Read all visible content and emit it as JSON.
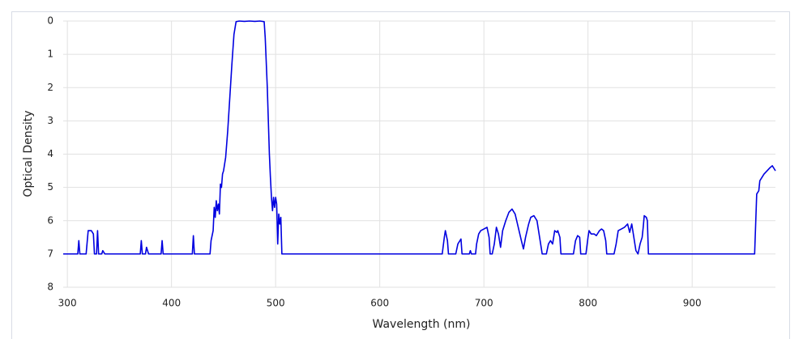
{
  "chart_data": {
    "type": "line",
    "x_label": "Wavelength (nm)",
    "y_label": "Optical Density",
    "xlim": [
      296,
      980
    ],
    "xticks": [
      300,
      400,
      500,
      600,
      700,
      800,
      900
    ],
    "ylim": [
      8,
      0
    ],
    "yticks": [
      0,
      1,
      2,
      3,
      4,
      5,
      6,
      7,
      8
    ],
    "grid": true,
    "series": [
      {
        "color": "#0000e0",
        "x": [
          296,
          310,
          311,
          312,
          318,
          320,
          323,
          325,
          326,
          328,
          329,
          330,
          333,
          334,
          336,
          370,
          371,
          372,
          375,
          376,
          378,
          390,
          391,
          392,
          420,
          421,
          422,
          437,
          438,
          440,
          441,
          442,
          443,
          444,
          445,
          446,
          447,
          448,
          449,
          450,
          452,
          454,
          456,
          458,
          460,
          462,
          465,
          470,
          475,
          480,
          485,
          489,
          490,
          492,
          494,
          495,
          496,
          497,
          498,
          499,
          500,
          501,
          502,
          503,
          504,
          505,
          506,
          660,
          662,
          663,
          665,
          666,
          673,
          675,
          678,
          679,
          686,
          687,
          688,
          692,
          693,
          695,
          697,
          700,
          703,
          705,
          706,
          708,
          710,
          712,
          714,
          716,
          718,
          721,
          724,
          727,
          730,
          733,
          736,
          738,
          740,
          743,
          745,
          748,
          751,
          753,
          755,
          756,
          760,
          762,
          764,
          766,
          768,
          770,
          771,
          773,
          774,
          786,
          788,
          790,
          792,
          793,
          798,
          800,
          801,
          803,
          806,
          808,
          811,
          813,
          815,
          817,
          818,
          825,
          827,
          829,
          832,
          835,
          838,
          840,
          842,
          844,
          846,
          848,
          850,
          852,
          853,
          854,
          856,
          857,
          858,
          960,
          962,
          963,
          964,
          965,
          967,
          969,
          972,
          975,
          977,
          979,
          980
        ],
        "values": [
          7,
          7,
          6.6,
          7,
          7,
          6.3,
          6.3,
          6.4,
          7,
          7,
          6.3,
          7,
          7,
          6.9,
          7,
          7,
          6.6,
          7,
          7,
          6.8,
          7,
          7,
          6.6,
          7,
          7,
          6.45,
          7,
          7,
          6.6,
          6.3,
          5.6,
          5.9,
          5.4,
          5.7,
          5.5,
          5.8,
          4.9,
          5.0,
          4.6,
          4.5,
          4.1,
          3.3,
          2.3,
          1.3,
          0.4,
          0.02,
          0,
          0.01,
          0,
          0.01,
          0,
          0.02,
          0.5,
          2,
          4,
          4.7,
          5.3,
          5.7,
          5.3,
          5.6,
          5.3,
          5.5,
          6.7,
          5.8,
          6.1,
          5.9,
          7,
          7,
          6.5,
          6.3,
          6.6,
          7,
          7,
          6.7,
          6.55,
          7,
          7,
          6.9,
          7,
          7,
          6.7,
          6.4,
          6.3,
          6.25,
          6.2,
          6.5,
          7,
          7,
          6.7,
          6.2,
          6.4,
          6.8,
          6.3,
          6,
          5.75,
          5.65,
          5.8,
          6.2,
          6.6,
          6.85,
          6.5,
          6.1,
          5.9,
          5.85,
          6,
          6.4,
          6.8,
          7,
          7,
          6.7,
          6.6,
          6.7,
          6.3,
          6.35,
          6.3,
          6.5,
          7,
          7,
          6.6,
          6.45,
          6.5,
          7,
          7,
          6.5,
          6.3,
          6.4,
          6.4,
          6.45,
          6.3,
          6.25,
          6.3,
          6.6,
          7,
          7,
          6.7,
          6.3,
          6.25,
          6.2,
          6.1,
          6.35,
          6.1,
          6.5,
          6.9,
          7,
          6.7,
          6.5,
          6.2,
          5.85,
          5.9,
          6,
          7,
          7,
          5.2,
          5.15,
          5.1,
          4.8,
          4.7,
          4.6,
          4.5,
          4.4,
          4.35,
          4.45,
          4.5
        ]
      }
    ]
  }
}
